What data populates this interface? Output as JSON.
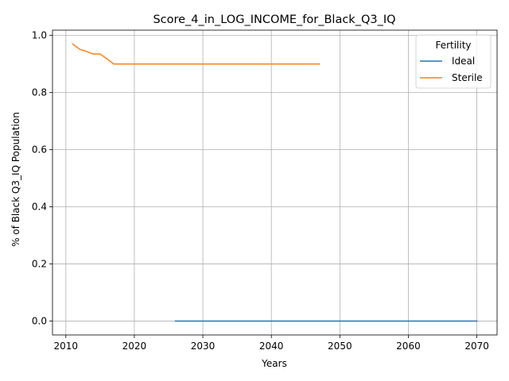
{
  "chart_data": {
    "type": "line",
    "title": "Score_4_in_LOG_INCOME_for_Black_Q3_IQ",
    "xlabel": "Years",
    "ylabel": "% of Black Q3_IQ Population",
    "xlim": [
      2008.05,
      2072.95
    ],
    "ylim": [
      -0.0485,
      1.0185
    ],
    "x_ticks": [
      2010,
      2020,
      2030,
      2040,
      2050,
      2060,
      2070
    ],
    "x_tick_labels": [
      "2010",
      "2020",
      "2030",
      "2040",
      "2050",
      "2060",
      "2070"
    ],
    "y_ticks": [
      0.0,
      0.2,
      0.4,
      0.6,
      0.8,
      1.0
    ],
    "y_tick_labels": [
      "0.0",
      "0.2",
      "0.4",
      "0.6",
      "0.8",
      "1.0"
    ],
    "grid": true,
    "legend": {
      "title": "Fertility",
      "placement": "top-right"
    },
    "series": [
      {
        "name": "Ideal",
        "color": "#1f77b4",
        "x": [
          2026,
          2070
        ],
        "y": [
          0.0,
          0.0
        ]
      },
      {
        "name": "Sterile",
        "color": "#ff7f0e",
        "x": [
          2011,
          2012,
          2013,
          2014,
          2015,
          2016,
          2017,
          2018,
          2020,
          2025,
          2030,
          2035,
          2040,
          2045,
          2047
        ],
        "y": [
          0.97,
          0.952,
          0.944,
          0.935,
          0.935,
          0.918,
          0.9,
          0.9,
          0.9,
          0.9,
          0.9,
          0.9,
          0.9,
          0.9,
          0.9
        ]
      }
    ]
  }
}
